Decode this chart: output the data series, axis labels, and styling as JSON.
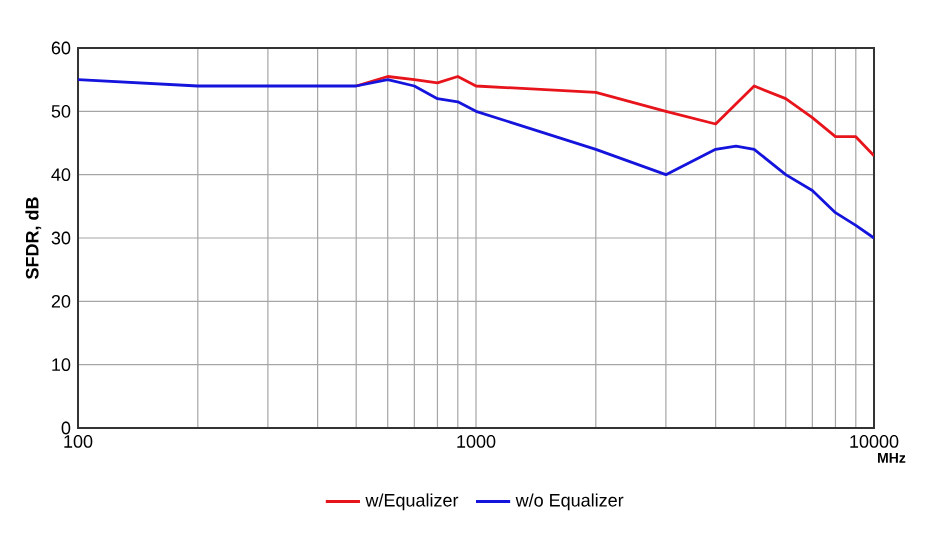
{
  "chart_data": {
    "type": "line",
    "xlabel": "MHz",
    "ylabel": "SFDR, dB",
    "log": "x",
    "xlim": [
      100,
      10000
    ],
    "xticks": [
      100,
      1000,
      10000
    ],
    "ylim": [
      0,
      60
    ],
    "yticks": [
      0,
      10,
      20,
      30,
      40,
      50,
      60
    ],
    "grid": true,
    "legend": "bottom",
    "marker": "none",
    "line_style": "solid",
    "series": [
      {
        "name": "w/Equalizer",
        "color": "#e8141c",
        "x": [
          500,
          600,
          700,
          800,
          900,
          1000,
          2000,
          3000,
          4000,
          5000,
          6000,
          7000,
          8000,
          9000,
          10000
        ],
        "values": [
          54,
          55.5,
          55,
          54.5,
          55.5,
          54,
          53,
          50,
          48,
          54,
          52,
          49,
          46,
          46,
          43
        ]
      },
      {
        "name": "w/o Equalizer",
        "color": "#1414dc",
        "x": [
          100,
          200,
          300,
          400,
          500,
          600,
          700,
          800,
          900,
          1000,
          2000,
          3000,
          4000,
          4500,
          5000,
          6000,
          7000,
          8000,
          9000,
          10000
        ],
        "values": [
          55,
          54,
          54,
          54,
          54,
          55,
          54,
          52,
          51.5,
          50,
          44,
          40,
          44,
          44.5,
          44,
          40,
          37.5,
          34,
          32,
          30
        ]
      }
    ]
  }
}
